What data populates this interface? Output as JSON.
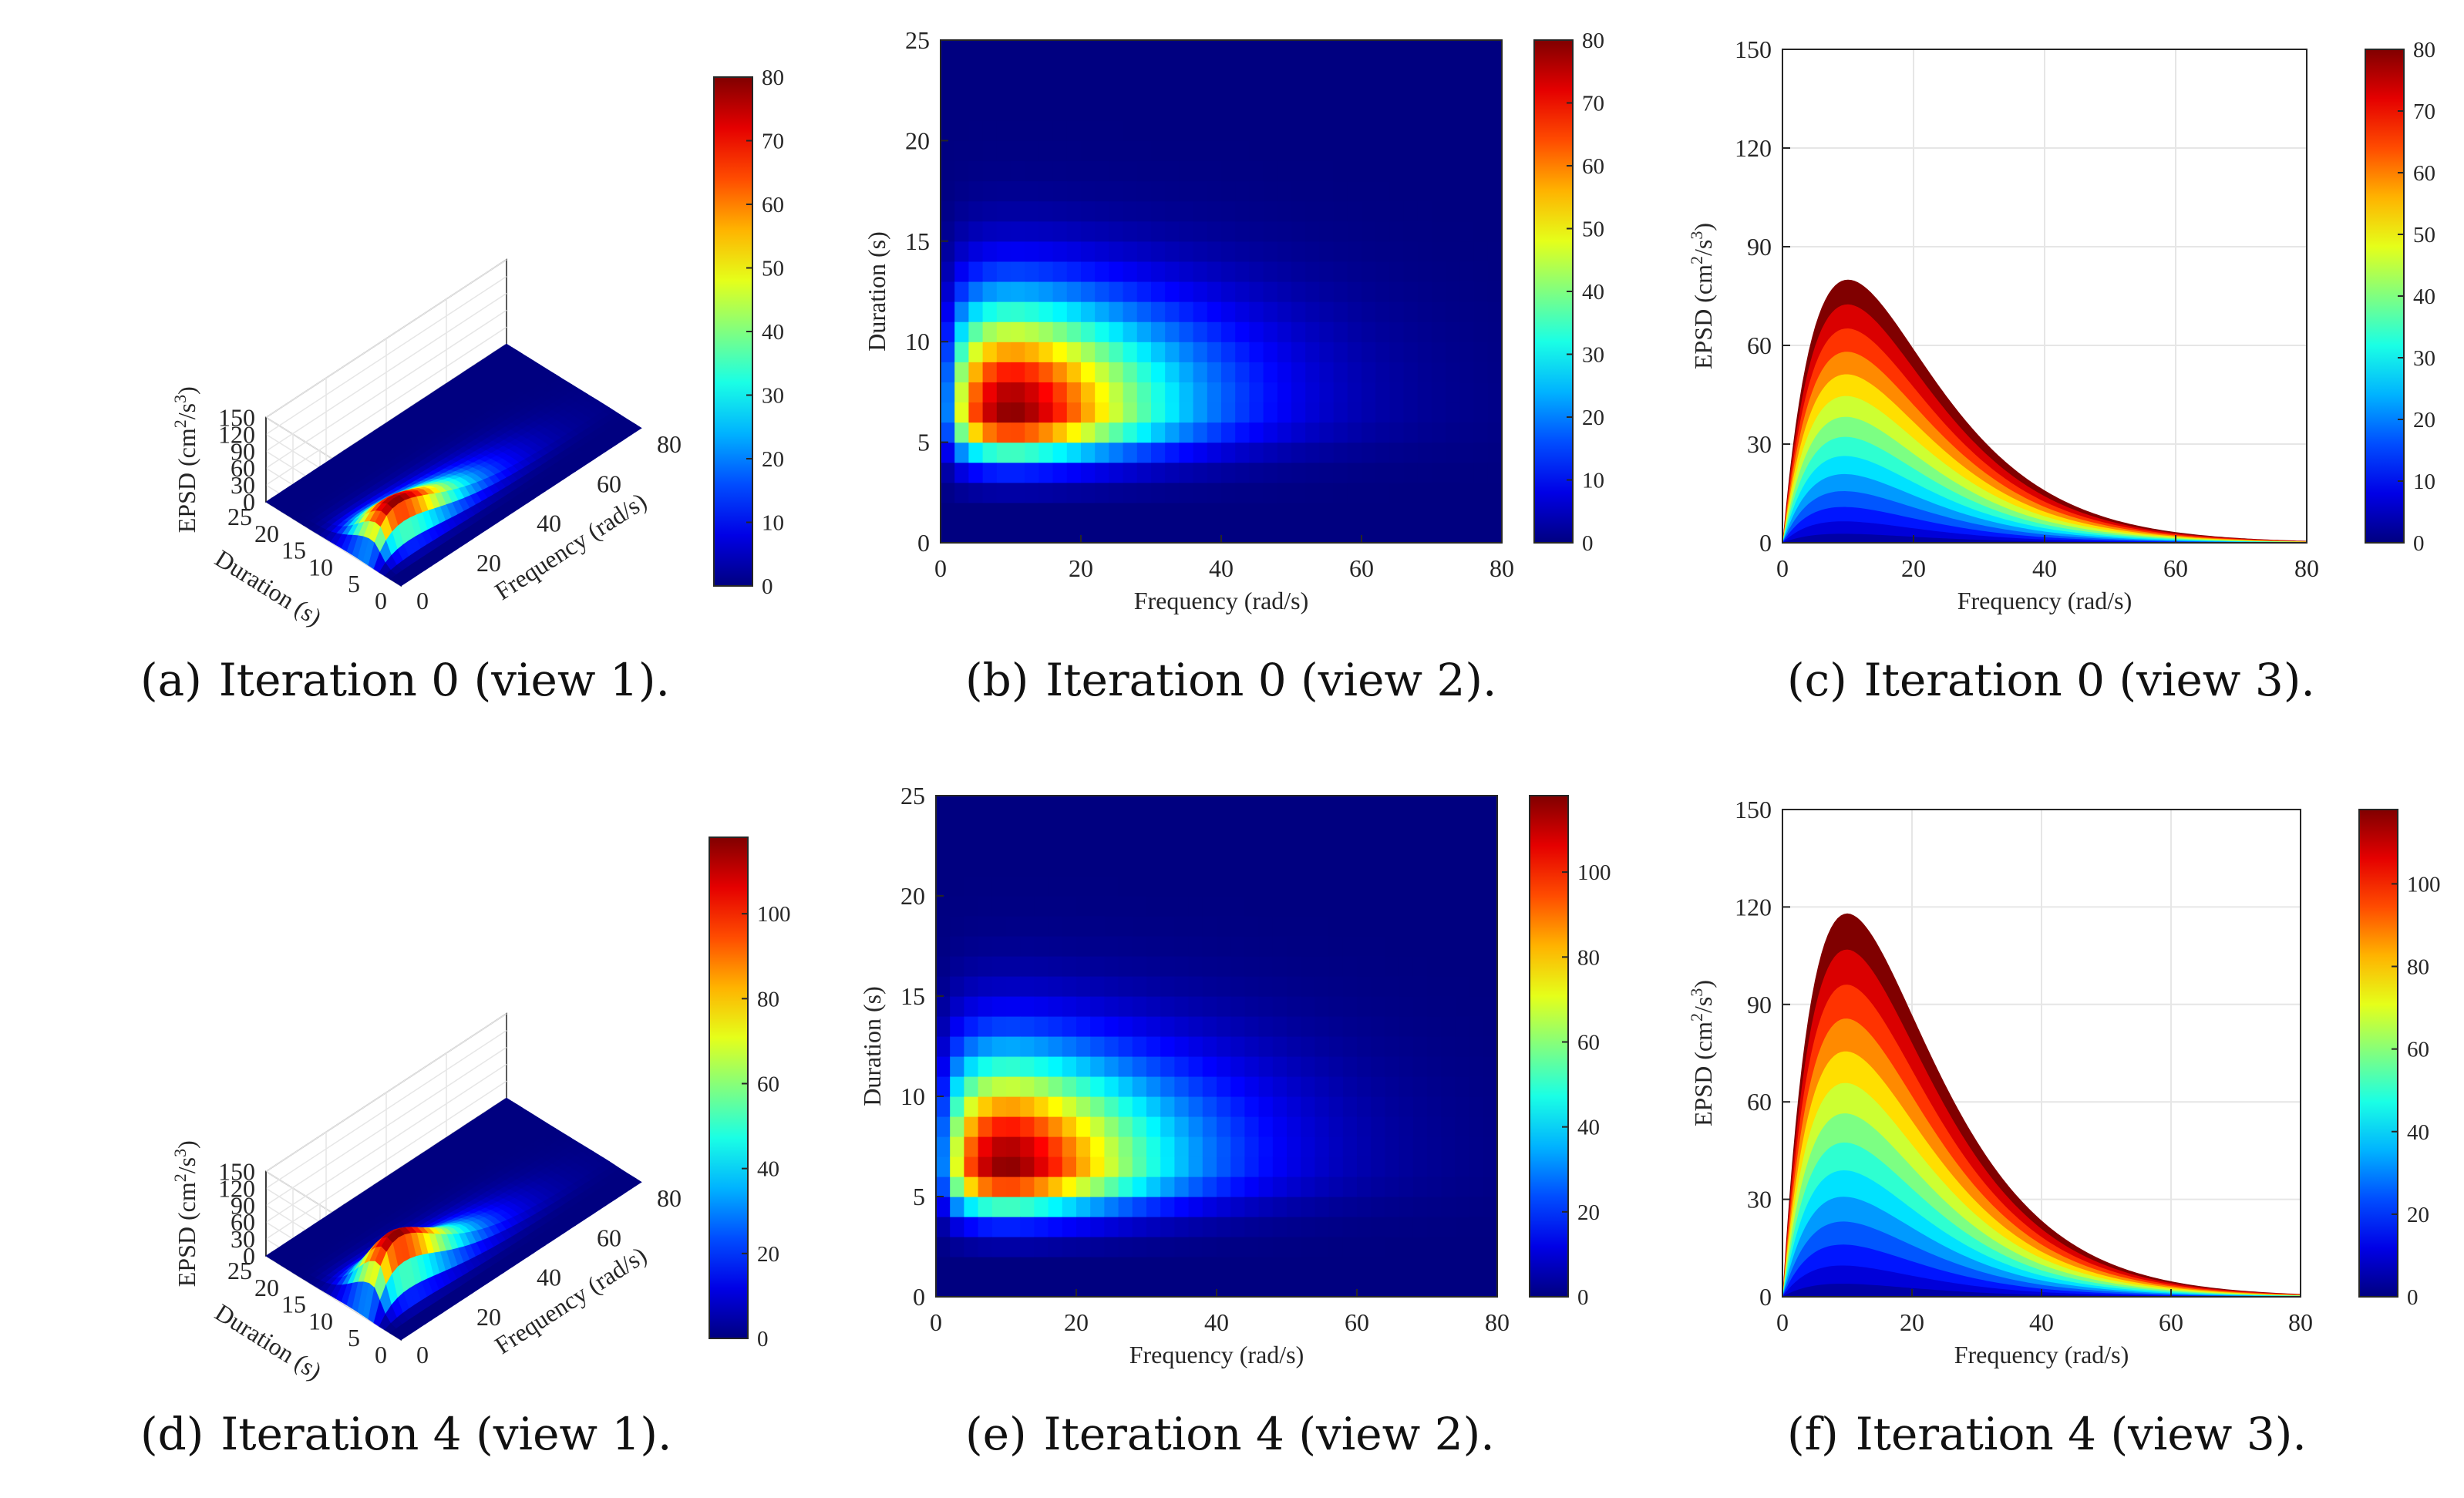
{
  "colors": {
    "axis": "#262626",
    "grid": "#e6e6e6",
    "background": "#ffffff"
  },
  "common": {
    "freq_label": "Frequency (rad/s)",
    "dur_label": "Duration (s)",
    "epsd_label": "EPSD (cm²/s³)",
    "epsd_label_parts": {
      "base": "EPSD (cm",
      "sup1": "2",
      "mid": "/s",
      "sup2": "3",
      "end": ")"
    }
  },
  "chart_data": [
    {
      "id": "a",
      "type": "surface",
      "caption_label": "(a)",
      "caption_text": "Iteration 0 (view 1).",
      "xlabel": "Frequency (rad/s)",
      "ylabel": "Duration (s)",
      "zlabel": "EPSD (cm²/s³)",
      "xlim": [
        0,
        80
      ],
      "ylim": [
        0,
        25
      ],
      "zlim": [
        0,
        150
      ],
      "xticks": [
        20,
        40,
        60,
        80
      ],
      "yticks": [
        0,
        5,
        10,
        15,
        20,
        25
      ],
      "zticks": [
        0,
        30,
        60,
        90,
        120,
        150
      ],
      "peak": {
        "frequency": 10,
        "duration": 6.5,
        "value": 80
      },
      "colorbar": {
        "min": 0,
        "max": 80,
        "ticks": [
          0,
          10,
          20,
          30,
          40,
          50,
          60,
          70,
          80
        ]
      }
    },
    {
      "id": "b",
      "type": "heatmap",
      "caption_label": "(b)",
      "caption_text": "Iteration 0 (view 2).",
      "xlabel": "Frequency (rad/s)",
      "ylabel": "Duration (s)",
      "xlim": [
        0,
        80
      ],
      "ylim": [
        0,
        25
      ],
      "xticks": [
        0,
        20,
        40,
        60,
        80
      ],
      "yticks": [
        0,
        5,
        10,
        15,
        20,
        25
      ],
      "peak": {
        "frequency": 10,
        "duration": 6.5,
        "value": 80
      },
      "colorbar": {
        "min": 0,
        "max": 80,
        "ticks": [
          0,
          10,
          20,
          30,
          40,
          50,
          60,
          70,
          80
        ]
      }
    },
    {
      "id": "c",
      "type": "area",
      "caption_label": "(c)",
      "caption_text": "Iteration 0 (view 3).",
      "xlabel": "Frequency (rad/s)",
      "ylabel": "EPSD (cm²/s³)",
      "xlim": [
        0,
        80
      ],
      "ylim": [
        0,
        150
      ],
      "xticks": [
        0,
        20,
        40,
        60,
        80
      ],
      "yticks": [
        0,
        30,
        60,
        90,
        120,
        150
      ],
      "peak": {
        "frequency": 10,
        "value": 80
      },
      "series_peaks": [
        20,
        45,
        67,
        80
      ],
      "colorbar": {
        "min": 0,
        "max": 80,
        "ticks": [
          0,
          10,
          20,
          30,
          40,
          50,
          60,
          70,
          80
        ]
      }
    },
    {
      "id": "d",
      "type": "surface",
      "caption_label": "(d)",
      "caption_text": "Iteration 4 (view 1).",
      "xlabel": "Frequency (rad/s)",
      "ylabel": "Duration (s)",
      "zlabel": "EPSD (cm²/s³)",
      "xlim": [
        0,
        80
      ],
      "ylim": [
        0,
        25
      ],
      "zlim": [
        0,
        150
      ],
      "xticks": [
        20,
        40,
        60,
        80
      ],
      "yticks": [
        0,
        5,
        10,
        15,
        20,
        25
      ],
      "zticks": [
        0,
        30,
        60,
        90,
        120,
        150
      ],
      "peak": {
        "frequency": 10,
        "duration": 6.5,
        "value": 118
      },
      "colorbar": {
        "min": 0,
        "max": 118,
        "ticks": [
          0,
          20,
          40,
          60,
          80,
          100
        ]
      }
    },
    {
      "id": "e",
      "type": "heatmap",
      "caption_label": "(e)",
      "caption_text": "Iteration 4 (view 2).",
      "xlabel": "Frequency (rad/s)",
      "ylabel": "Duration (s)",
      "xlim": [
        0,
        80
      ],
      "ylim": [
        0,
        25
      ],
      "xticks": [
        0,
        20,
        40,
        60,
        80
      ],
      "yticks": [
        0,
        5,
        10,
        15,
        20,
        25
      ],
      "peak": {
        "frequency": 10,
        "duration": 6.5,
        "value": 118
      },
      "colorbar": {
        "min": 0,
        "max": 118,
        "ticks": [
          0,
          20,
          40,
          60,
          80,
          100
        ]
      }
    },
    {
      "id": "f",
      "type": "area",
      "caption_label": "(f)",
      "caption_text": "Iteration 4 (view 3).",
      "xlabel": "Frequency (rad/s)",
      "ylabel": "EPSD (cm²/s³)",
      "xlim": [
        0,
        80
      ],
      "ylim": [
        0,
        150
      ],
      "xticks": [
        0,
        20,
        40,
        60,
        80
      ],
      "yticks": [
        0,
        30,
        60,
        90,
        120,
        150
      ],
      "peak": {
        "frequency": 10,
        "value": 118
      },
      "series_peaks": [
        21,
        55,
        88,
        110,
        118
      ],
      "colorbar": {
        "min": 0,
        "max": 118,
        "ticks": [
          0,
          20,
          40,
          60,
          80,
          100
        ]
      }
    }
  ]
}
